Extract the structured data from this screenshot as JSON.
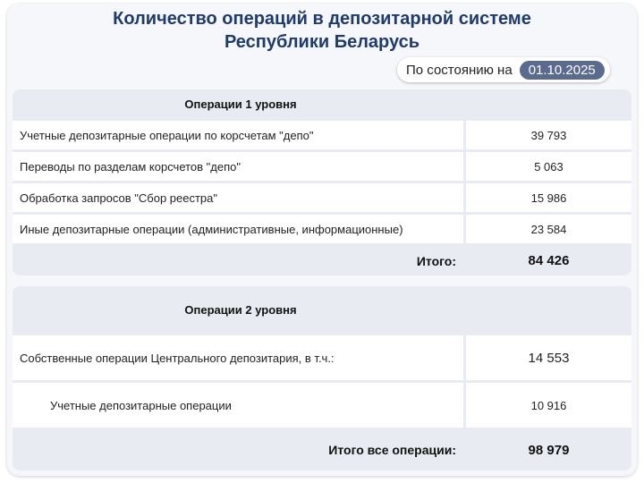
{
  "title": {
    "line1": "Количество операций в депозитарной системе",
    "line2": "Республики Беларусь"
  },
  "status": {
    "label": "По состоянию на",
    "date": "01.10.2025"
  },
  "level1": {
    "header": "Операции 1 уровня",
    "rows": [
      {
        "label": "Учетные депозитарные операции по корсчетам \"депо\"",
        "value": "39 793"
      },
      {
        "label": "Переводы по разделам корсчетов \"депо\"",
        "value": "5 063"
      },
      {
        "label": "Обработка запросов \"Сбор реестра\"",
        "value": "15 986"
      },
      {
        "label": "Иные депозитарные операции (административные, информационные)",
        "value": "23 584"
      }
    ],
    "total_label": "Итого:",
    "total_value": "84 426"
  },
  "level2": {
    "header": "Операции 2 уровня",
    "rows": [
      {
        "label": "Собственные операции Центрального депозитария, в т.ч.:",
        "value": "14 553"
      },
      {
        "label": "Учетные депозитарные операции",
        "value": "10 916"
      }
    ],
    "total_label": "Итого все операции:",
    "total_value": "98 979"
  },
  "colors": {
    "title": "#1f3b6d",
    "panel": "#e9ebf2",
    "date_badge": "#5b6b8f"
  }
}
